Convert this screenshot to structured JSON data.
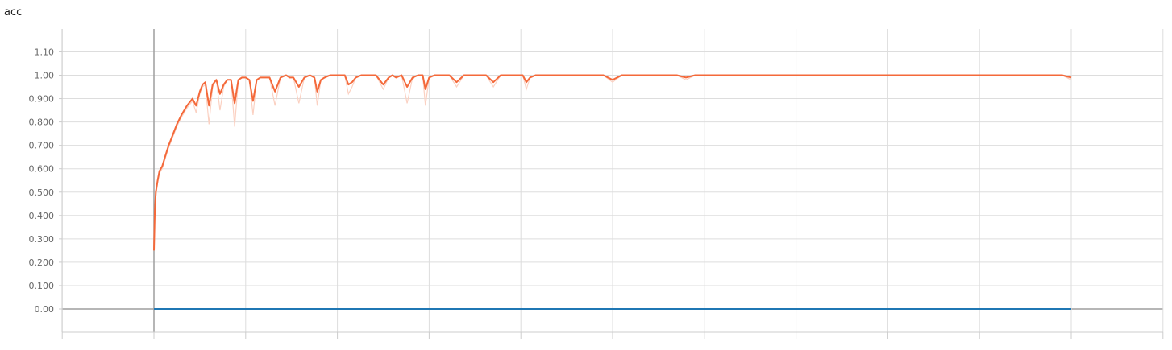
{
  "chart_data": {
    "type": "line",
    "title": "acc",
    "xlabel": "",
    "ylabel": "",
    "ylim": [
      -0.1,
      1.19
    ],
    "xlim": [
      -1,
      11.2
    ],
    "y_ticks": [
      {
        "value": 0.0,
        "label": "0.00"
      },
      {
        "value": 0.1,
        "label": "0.100"
      },
      {
        "value": 0.2,
        "label": "0.200"
      },
      {
        "value": 0.3,
        "label": "0.300"
      },
      {
        "value": 0.4,
        "label": "0.400"
      },
      {
        "value": 0.5,
        "label": "0.500"
      },
      {
        "value": 0.6,
        "label": "0.600"
      },
      {
        "value": 0.7,
        "label": "0.700"
      },
      {
        "value": 0.8,
        "label": "0.800"
      },
      {
        "value": 0.9,
        "label": "0.900"
      },
      {
        "value": 1.0,
        "label": "1.00"
      },
      {
        "value": 1.1,
        "label": "1.10"
      }
    ],
    "x_gridlines": [
      -1,
      0,
      1,
      2,
      3,
      4,
      5,
      6,
      7,
      8,
      9,
      10,
      11
    ],
    "grid": true,
    "legend": "none",
    "series": [
      {
        "color": "#f4693a",
        "raw_color": "#fbd1c2",
        "x": [
          0.0,
          0.01,
          0.02,
          0.04,
          0.06,
          0.09,
          0.12,
          0.16,
          0.2,
          0.25,
          0.3,
          0.36,
          0.42,
          0.46,
          0.5,
          0.53,
          0.56,
          0.6,
          0.64,
          0.68,
          0.72,
          0.76,
          0.8,
          0.84,
          0.88,
          0.92,
          0.96,
          1.0,
          1.04,
          1.08,
          1.12,
          1.16,
          1.2,
          1.26,
          1.32,
          1.38,
          1.44,
          1.48,
          1.52,
          1.58,
          1.64,
          1.7,
          1.75,
          1.78,
          1.82,
          1.86,
          1.92,
          2.0,
          2.08,
          2.12,
          2.16,
          2.2,
          2.26,
          2.34,
          2.42,
          2.5,
          2.56,
          2.6,
          2.64,
          2.7,
          2.76,
          2.82,
          2.88,
          2.93,
          2.96,
          3.0,
          3.06,
          3.14,
          3.22,
          3.3,
          3.38,
          3.46,
          3.54,
          3.62,
          3.7,
          3.78,
          3.86,
          3.94,
          4.02,
          4.06,
          4.1,
          4.16,
          4.22,
          4.3,
          4.4,
          4.5,
          4.6,
          4.7,
          4.8,
          4.9,
          5.0,
          5.1,
          5.2,
          5.3,
          5.4,
          5.5,
          5.6,
          5.7,
          5.8,
          5.9,
          6.0,
          6.1,
          6.2,
          6.3,
          6.4,
          6.5,
          6.6,
          6.7,
          6.8,
          6.9,
          7.0,
          7.1,
          7.2,
          7.3,
          7.4,
          7.5,
          7.6,
          7.7,
          7.8,
          7.9,
          8.0,
          8.1,
          8.2,
          8.3,
          8.4,
          8.5,
          8.6,
          8.7,
          8.8,
          8.9,
          9.0,
          9.1,
          9.2,
          9.3,
          9.4,
          9.5,
          9.6,
          9.7,
          9.8,
          9.9,
          10.0
        ],
        "values": [
          0.25,
          0.42,
          0.5,
          0.55,
          0.59,
          0.61,
          0.65,
          0.7,
          0.74,
          0.79,
          0.83,
          0.87,
          0.9,
          0.87,
          0.93,
          0.96,
          0.97,
          0.87,
          0.96,
          0.98,
          0.92,
          0.96,
          0.98,
          0.98,
          0.88,
          0.98,
          0.99,
          0.99,
          0.98,
          0.89,
          0.98,
          0.99,
          0.99,
          0.99,
          0.93,
          0.99,
          1.0,
          0.99,
          0.99,
          0.95,
          0.99,
          1.0,
          0.99,
          0.93,
          0.98,
          0.99,
          1.0,
          1.0,
          1.0,
          0.96,
          0.97,
          0.99,
          1.0,
          1.0,
          1.0,
          0.96,
          0.99,
          1.0,
          0.99,
          1.0,
          0.95,
          0.99,
          1.0,
          1.0,
          0.94,
          0.99,
          1.0,
          1.0,
          1.0,
          0.97,
          1.0,
          1.0,
          1.0,
          1.0,
          0.97,
          1.0,
          1.0,
          1.0,
          1.0,
          0.97,
          0.99,
          1.0,
          1.0,
          1.0,
          1.0,
          1.0,
          1.0,
          1.0,
          1.0,
          1.0,
          0.98,
          1.0,
          1.0,
          1.0,
          1.0,
          1.0,
          1.0,
          1.0,
          0.99,
          1.0,
          1.0,
          1.0,
          1.0,
          1.0,
          1.0,
          1.0,
          1.0,
          1.0,
          1.0,
          1.0,
          1.0,
          1.0,
          1.0,
          1.0,
          1.0,
          1.0,
          1.0,
          1.0,
          1.0,
          1.0,
          1.0,
          1.0,
          1.0,
          1.0,
          1.0,
          1.0,
          1.0,
          1.0,
          1.0,
          1.0,
          1.0,
          1.0,
          1.0,
          1.0,
          1.0,
          1.0,
          1.0,
          1.0,
          1.0,
          1.0,
          0.99
        ],
        "raw_values": [
          0.25,
          0.4,
          0.48,
          0.54,
          0.58,
          0.6,
          0.64,
          0.69,
          0.73,
          0.78,
          0.82,
          0.86,
          0.89,
          0.84,
          0.92,
          0.95,
          0.96,
          0.79,
          0.95,
          0.98,
          0.85,
          0.95,
          0.98,
          0.98,
          0.78,
          0.98,
          0.99,
          0.99,
          0.98,
          0.83,
          0.98,
          0.99,
          0.99,
          0.99,
          0.87,
          0.99,
          1.0,
          0.99,
          0.99,
          0.88,
          0.99,
          1.0,
          0.99,
          0.87,
          0.98,
          0.99,
          1.0,
          1.0,
          1.0,
          0.92,
          0.95,
          0.99,
          1.0,
          1.0,
          1.0,
          0.94,
          0.99,
          1.0,
          0.99,
          1.0,
          0.88,
          0.99,
          1.0,
          1.0,
          0.87,
          0.99,
          1.0,
          1.0,
          1.0,
          0.95,
          1.0,
          1.0,
          1.0,
          1.0,
          0.95,
          1.0,
          1.0,
          1.0,
          1.0,
          0.94,
          0.99,
          1.0,
          1.0,
          1.0,
          1.0,
          1.0,
          1.0,
          1.0,
          1.0,
          1.0,
          0.97,
          1.0,
          1.0,
          1.0,
          1.0,
          1.0,
          1.0,
          1.0,
          0.98,
          1.0,
          1.0,
          1.0,
          1.0,
          1.0,
          1.0,
          1.0,
          1.0,
          1.0,
          1.0,
          1.0,
          1.0,
          1.0,
          1.0,
          1.0,
          1.0,
          1.0,
          1.0,
          1.0,
          1.0,
          1.0,
          1.0,
          1.0,
          1.0,
          1.0,
          1.0,
          1.0,
          1.0,
          1.0,
          1.0,
          1.0,
          1.0,
          1.0,
          1.0,
          1.0,
          1.0,
          1.0,
          1.0,
          1.0,
          1.0,
          1.0,
          0.98
        ]
      },
      {
        "color": "#1f77b4",
        "x": [
          0.0,
          10.0
        ],
        "values": [
          0.0,
          0.0
        ]
      }
    ]
  }
}
